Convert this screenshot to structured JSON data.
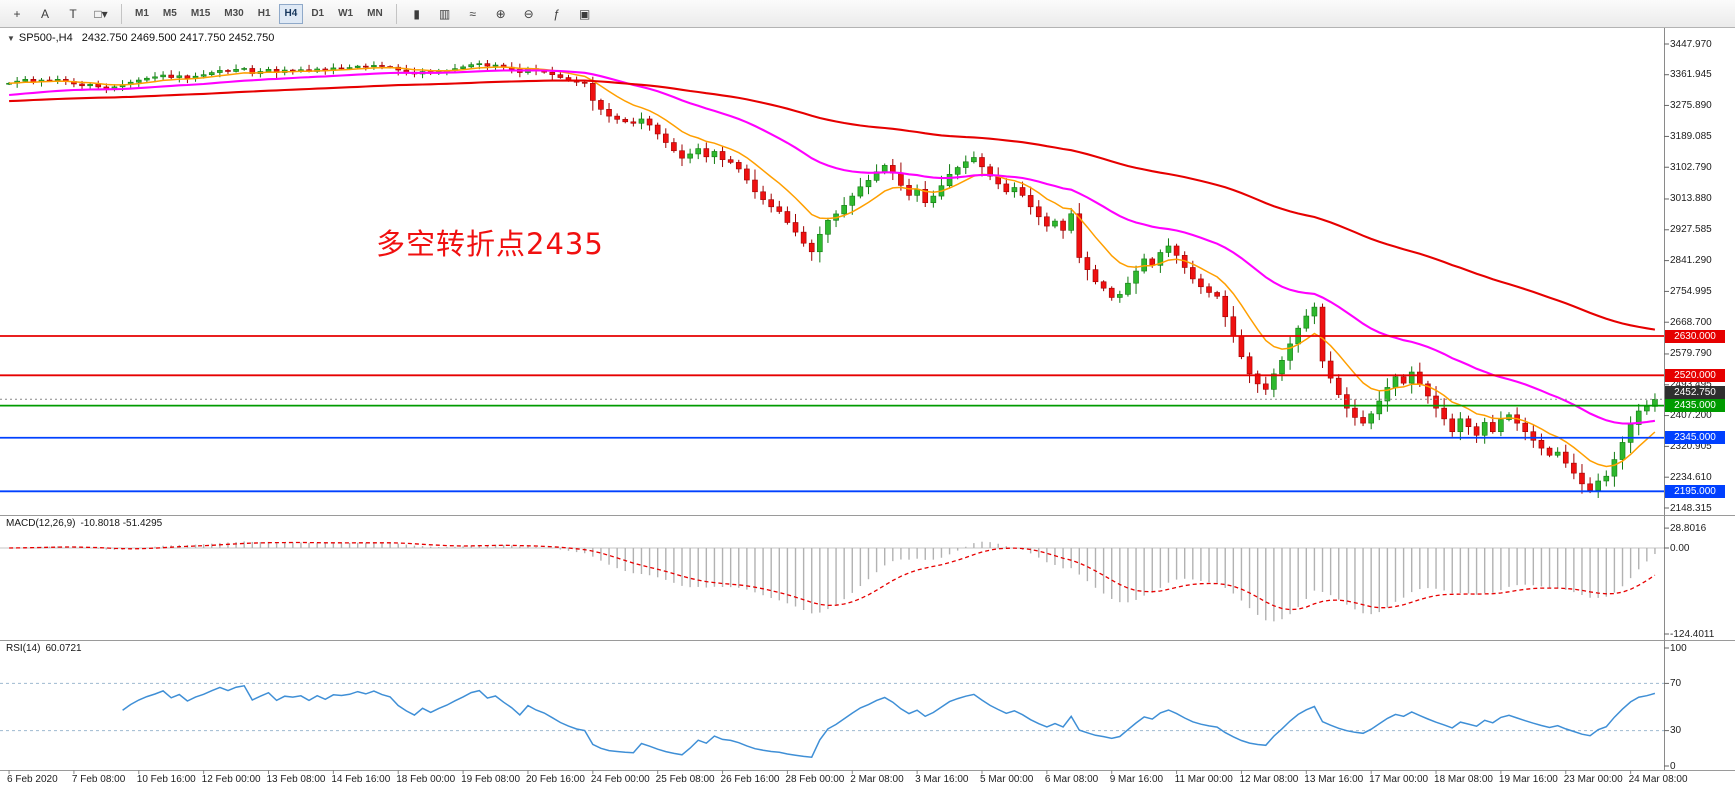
{
  "toolbar": {
    "left_icons": [
      {
        "name": "crosshair-icon",
        "glyph": "+"
      },
      {
        "name": "text-tool-icon",
        "glyph": "A"
      },
      {
        "name": "arrow-tool-icon",
        "glyph": "T"
      },
      {
        "name": "shapes-dropdown-icon",
        "glyph": "□▾"
      }
    ],
    "timeframes": [
      "M1",
      "M5",
      "M15",
      "M30",
      "H1",
      "H4",
      "D1",
      "W1",
      "MN"
    ],
    "active_timeframe": "H4",
    "right_icons": [
      {
        "name": "chart-candles-icon",
        "glyph": "▮"
      },
      {
        "name": "chart-bars-icon",
        "glyph": "▥"
      },
      {
        "name": "chart-line-icon",
        "glyph": "≈"
      },
      {
        "name": "zoom-in-icon",
        "glyph": "⊕"
      },
      {
        "name": "zoom-out-icon",
        "glyph": "⊖"
      },
      {
        "name": "indicators-icon",
        "glyph": "ƒ"
      },
      {
        "name": "templates-icon",
        "glyph": "▣"
      }
    ]
  },
  "chart": {
    "collapse_glyph": "▼",
    "title_symbol": "SP500-,H4",
    "title_ohlc": "2432.750 2469.500 2417.750 2452.750",
    "annotation": {
      "text": "多空转折点2435",
      "color": "#f01010"
    },
    "price_max": 3447.97,
    "price_min": 2148.315,
    "price_axis_labels": [
      "3447.970",
      "3361.945",
      "3275.890",
      "3189.085",
      "3102.790",
      "3013.880",
      "2927.585",
      "2841.290",
      "2754.995",
      "2668.700",
      "2579.790",
      "2493.495",
      "2407.200",
      "2320.905",
      "2234.610",
      "2148.315"
    ],
    "hlines": [
      {
        "price": 2630,
        "label": "2630.000",
        "color": "#e60000"
      },
      {
        "price": 2520,
        "label": "2520.000",
        "color": "#e60000"
      },
      {
        "price": 2435,
        "label": "2435.000",
        "color": "#009b00"
      },
      {
        "price": 2345,
        "label": "2345.000",
        "color": "#0040ff"
      },
      {
        "price": 2195,
        "label": "2195.000",
        "color": "#0040ff"
      }
    ],
    "current_price": {
      "value": 2452.75,
      "label": "2452.750",
      "bg": "#2f2f2f"
    },
    "candles": {
      "up_color": "#2eb82e",
      "up_border": "#117a11",
      "down_color": "#ef1010",
      "down_border": "#9e0000",
      "first_open": 3338,
      "closes": [
        3338,
        3344,
        3349,
        3342,
        3347,
        3345.8,
        3349,
        3343,
        3336,
        3331,
        3335,
        3327.7,
        3322,
        3328,
        3334,
        3341,
        3347,
        3352.1,
        3356,
        3361,
        3354,
        3359,
        3352,
        3357.8,
        3362,
        3368,
        3374,
        3371,
        3377,
        3379.5,
        3365,
        3371,
        3377,
        3368,
        3375,
        3373.9,
        3376,
        3371,
        3378,
        3374,
        3381,
        3380.2,
        3382,
        3386,
        3384,
        3388,
        3385,
        3383,
        3375,
        3369,
        3364,
        3371,
        3366,
        3370.3,
        3374,
        3379,
        3384,
        3390,
        3393,
        3386.2,
        3389,
        3383,
        3377,
        3368,
        3379,
        3373.2,
        3369,
        3362,
        3354,
        3347,
        3341,
        3337.8,
        3290,
        3265,
        3246,
        3237,
        3230,
        3225.9,
        3238,
        3221,
        3196,
        3172,
        3149,
        3128.2,
        3140,
        3155,
        3132,
        3147,
        3124,
        3116.4,
        3098,
        3067,
        3034,
        3012,
        2992,
        2978.8,
        2948,
        2921,
        2890,
        2866,
        2915,
        2954.2,
        2972,
        2996,
        3022,
        3048,
        3066,
        3090.2,
        3108,
        3086,
        3052,
        3024,
        3041,
        3003.4,
        3022,
        3051,
        3083,
        3102,
        3118,
        3130.1,
        3104,
        3078,
        3056,
        3034,
        3046,
        3023.9,
        2992,
        2964,
        2938,
        2952,
        2926,
        2972.4,
        2850,
        2816,
        2782,
        2764,
        2738,
        2746.6,
        2778,
        2812,
        2846,
        2828,
        2864,
        2882.2,
        2856,
        2822,
        2790,
        2768,
        2752,
        2741.4,
        2684,
        2630,
        2572,
        2524,
        2496,
        2480.6,
        2524,
        2562,
        2608,
        2652,
        2686,
        2711,
        2560,
        2512,
        2466,
        2428,
        2402,
        2386.1,
        2412,
        2448,
        2486,
        2516,
        2498,
        2529.2,
        2496,
        2462,
        2428,
        2398,
        2362,
        2398.1,
        2376,
        2352,
        2388,
        2362,
        2396,
        2409.4,
        2386,
        2362,
        2338,
        2316,
        2296,
        2304.9,
        2274,
        2246,
        2216,
        2198,
        2224,
        2237.4,
        2284,
        2332,
        2382,
        2420,
        2432.8,
        2452.8
      ],
      "last_bar": {
        "open": 2432.75,
        "high": 2469.5,
        "low": 2417.75,
        "close": 2452.75
      }
    },
    "moving_averages": [
      {
        "name": "ma-fast-line",
        "color": "#ff9f00"
      },
      {
        "name": "ma-medium-line",
        "color": "#ff00ff"
      },
      {
        "name": "ma-slow-line",
        "color": "#e60000"
      }
    ]
  },
  "macd": {
    "label": "MACD(12,26,9)",
    "values": "-10.8018 -51.4295",
    "axis_labels": [
      "28.8016",
      "0.00",
      "-124.4011"
    ],
    "axis_values": [
      28.8016,
      0,
      -124.4011
    ],
    "histogram_color": "#b2b2b2",
    "signal_color": "#e60000"
  },
  "rsi": {
    "label": "RSI(14)",
    "value": "60.0721",
    "axis_labels": [
      "100",
      "70",
      "30",
      "0"
    ],
    "axis_values": [
      100,
      70,
      30,
      0
    ],
    "levels": [
      70,
      30
    ],
    "line_color": "#3f8fd6"
  },
  "time_axis": [
    "6 Feb 2020",
    "7 Feb 08:00",
    "10 Feb 16:00",
    "12 Feb 00:00",
    "13 Feb 08:00",
    "14 Feb 16:00",
    "18 Feb 00:00",
    "19 Feb 08:00",
    "20 Feb 16:00",
    "24 Feb 00:00",
    "25 Feb 08:00",
    "26 Feb 16:00",
    "28 Feb 00:00",
    "2 Mar 08:00",
    "3 Mar 16:00",
    "5 Mar 00:00",
    "6 Mar 08:00",
    "9 Mar 16:00",
    "11 Mar 00:00",
    "12 Mar 08:00",
    "13 Mar 16:00",
    "17 Mar 00:00",
    "18 Mar 08:00",
    "19 Mar 16:00",
    "23 Mar 00:00",
    "24 Mar 08:00"
  ]
}
